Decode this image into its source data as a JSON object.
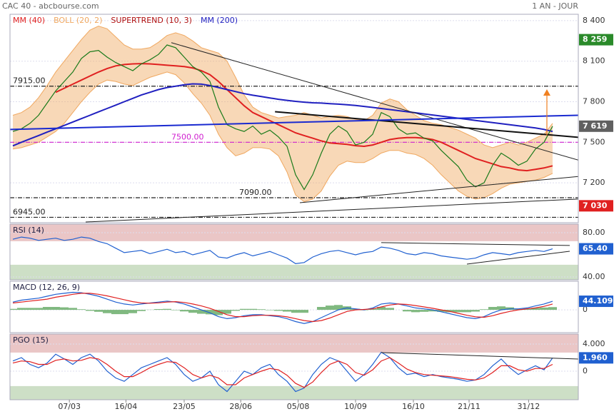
{
  "header": {
    "title": "CAC 40 - abcbourse.com",
    "period": "1 AN - JOUR"
  },
  "chart_data": [
    {
      "type": "line",
      "xlim": [
        -0.33,
        66
      ],
      "ylim": [
        6905,
        8447
      ],
      "yticks": [
        {
          "value": 8400,
          "label": "8 400"
        },
        {
          "value": 8100,
          "label": "8 100"
        },
        {
          "value": 7800,
          "label": "7 800"
        },
        {
          "value": 7500,
          "label": "7 500"
        },
        {
          "value": 7200,
          "label": "7 200"
        }
      ],
      "legend_extra": [
        {
          "name": "SUPERTREND (10, 3)",
          "color": "#b01010"
        }
      ],
      "bands": {
        "name": "BOLL (20, 2)",
        "color": "#f0a860",
        "upper": [
          7700,
          7720,
          7760,
          7830,
          7920,
          8020,
          8100,
          8180,
          8260,
          8330,
          8360,
          8340,
          8280,
          8220,
          8190,
          8190,
          8200,
          8240,
          8290,
          8310,
          8290,
          8250,
          8200,
          8180,
          8160,
          8100,
          7980,
          7850,
          7760,
          7720,
          7700,
          7680,
          7690,
          7700,
          7720,
          7700,
          7680,
          7690,
          7700,
          7690,
          7670,
          7660,
          7700,
          7790,
          7820,
          7800,
          7740,
          7700,
          7660,
          7640,
          7630,
          7610,
          7590,
          7560,
          7530,
          7480,
          7460,
          7480,
          7500,
          7480,
          7500,
          7530,
          7560,
          7640
        ],
        "lower": [
          7450,
          7460,
          7480,
          7500,
          7540,
          7580,
          7640,
          7720,
          7800,
          7870,
          7930,
          7960,
          7950,
          7930,
          7920,
          7950,
          7980,
          8000,
          8020,
          8000,
          7940,
          7860,
          7790,
          7700,
          7560,
          7460,
          7400,
          7420,
          7460,
          7460,
          7450,
          7400,
          7280,
          7110,
          7060,
          7080,
          7140,
          7250,
          7330,
          7360,
          7350,
          7350,
          7380,
          7420,
          7440,
          7440,
          7420,
          7410,
          7380,
          7330,
          7260,
          7200,
          7140,
          7100,
          7080,
          7090,
          7120,
          7160,
          7190,
          7200,
          7210,
          7220,
          7240,
          7270
        ]
      },
      "series": [
        {
          "name": "MM (40)",
          "color": "#e02020",
          "values": [
            null,
            null,
            null,
            null,
            null,
            7870,
            7900,
            7930,
            7960,
            7990,
            8020,
            8045,
            8065,
            8075,
            8080,
            8082,
            8080,
            8075,
            8070,
            8065,
            8060,
            8050,
            8030,
            8000,
            7950,
            7890,
            7830,
            7770,
            7720,
            7690,
            7660,
            7630,
            7600,
            7570,
            7550,
            7530,
            7510,
            7495,
            7490,
            7485,
            7475,
            7470,
            7480,
            7500,
            7520,
            7530,
            7535,
            7535,
            7530,
            7520,
            7500,
            7470,
            7440,
            7410,
            7380,
            7360,
            7340,
            7320,
            7310,
            7295,
            7290,
            7300,
            7310,
            7326
          ]
        },
        {
          "name": "MM (200)",
          "color": "#2020c0",
          "values": [
            7474,
            7500,
            7525,
            7550,
            7575,
            7600,
            7625,
            7650,
            7675,
            7700,
            7725,
            7750,
            7775,
            7800,
            7825,
            7850,
            7870,
            7890,
            7905,
            7915,
            7925,
            7932,
            7930,
            7920,
            7905,
            7890,
            7875,
            7860,
            7848,
            7838,
            7828,
            7818,
            7810,
            7803,
            7797,
            7792,
            7790,
            7786,
            7782,
            7778,
            7772,
            7765,
            7758,
            7750,
            7742,
            7734,
            7726,
            7718,
            7710,
            7702,
            7694,
            7686,
            7678,
            7670,
            7662,
            7654,
            7646,
            7638,
            7630,
            7622,
            7614,
            7606,
            7595,
            7580
          ]
        },
        {
          "color": "#1a7a1a",
          "values": [
            7580,
            7600,
            7640,
            7700,
            7790,
            7880,
            7950,
            8020,
            8120,
            8170,
            8180,
            8130,
            8090,
            8060,
            8030,
            8080,
            8110,
            8150,
            8220,
            8200,
            8130,
            8060,
            8020,
            7950,
            7760,
            7630,
            7600,
            7580,
            7620,
            7560,
            7590,
            7540,
            7470,
            7260,
            7150,
            7260,
            7420,
            7560,
            7620,
            7580,
            7480,
            7500,
            7560,
            7720,
            7690,
            7600,
            7560,
            7570,
            7530,
            7510,
            7440,
            7380,
            7320,
            7220,
            7170,
            7200,
            7330,
            7420,
            7380,
            7330,
            7360,
            7450,
            7500,
            7619
          ]
        }
      ],
      "trendlines": [
        {
          "x": [
            18.5,
            66
          ],
          "y": [
            8237,
            7368
          ],
          "color": "#222"
        },
        {
          "x": [
            30.6,
            66
          ],
          "y": [
            7726,
            7537
          ],
          "color": "#111",
          "width": 2
        },
        {
          "x": [
            8.5,
            66
          ],
          "y": [
            6910,
            7080
          ],
          "color": "#222"
        },
        {
          "x": [
            33.5,
            66
          ],
          "y": [
            7053,
            7247
          ],
          "color": "#222"
        },
        {
          "x": [
            -0.33,
            66
          ],
          "y": [
            7595,
            7700
          ],
          "color": "#1a2ad0",
          "width": 2
        }
      ],
      "levels": [
        {
          "value": 7915,
          "label": "7915.00",
          "color": "#222"
        },
        {
          "value": 7500,
          "label": "7500.00",
          "color": "#d020d0"
        },
        {
          "value": 7090,
          "label": "7090.00",
          "color": "#222"
        },
        {
          "value": 6945,
          "label": "6945.00",
          "color": "#222"
        }
      ],
      "badges": [
        {
          "value": 8259,
          "label": "8 259",
          "color": "#2a8a2a"
        },
        {
          "value": 7619,
          "label": "7 619",
          "color": "#606060"
        },
        {
          "value": 7030,
          "label": "7 030",
          "color": "#e02020"
        }
      ]
    },
    {
      "type": "line",
      "title": "RSI (14)",
      "xlim": [
        -0.33,
        66
      ],
      "ylim": [
        37.4,
        87.7
      ],
      "yticks": [
        {
          "value": 80,
          "label": "80.00"
        },
        {
          "value": 40,
          "label": "40.00"
        }
      ],
      "zones": [
        {
          "range": [
            72.3,
            87.7
          ],
          "color": "#e8c0c0"
        },
        {
          "range": [
            37.4,
            51
          ],
          "color": "#c8dcc0"
        }
      ],
      "series": [
        {
          "color": "#2060d0",
          "values": [
            74,
            76,
            75,
            73,
            74,
            75,
            73,
            74,
            76,
            75,
            72,
            70,
            66,
            62,
            63,
            64,
            61,
            63,
            65,
            62,
            63,
            60,
            62,
            64,
            58,
            57,
            60,
            62,
            59,
            61,
            63,
            60,
            57,
            52,
            53,
            58,
            61,
            63,
            64,
            62,
            60,
            62,
            63,
            67,
            66,
            64,
            61,
            60,
            62,
            61,
            59,
            58,
            57,
            56,
            57,
            60,
            62,
            61,
            60,
            62,
            63,
            64,
            63,
            65.4
          ]
        }
      ],
      "trendlines": [
        {
          "x": [
            43,
            65
          ],
          "y": [
            71,
            68.4
          ],
          "color": "#222"
        },
        {
          "x": [
            53,
            65
          ],
          "y": [
            51.6,
            63.2
          ],
          "color": "#222"
        }
      ],
      "badges": [
        {
          "value": 65.4,
          "label": "65.40",
          "color": "#2060d0"
        }
      ]
    },
    {
      "type": "line",
      "title": "MACD (12, 26, 9)",
      "xlim": [
        -0.33,
        66
      ],
      "ylim": [
        -117,
        147
      ],
      "yticks": [
        0
      ],
      "histogram": {
        "color": "#60a860",
        "values": [
          5,
          10,
          10,
          10,
          15,
          15,
          13,
          10,
          3,
          -5,
          -10,
          -17,
          -22,
          -22,
          -17,
          -6,
          1,
          4,
          5,
          -2,
          -8,
          -15,
          -20,
          -23,
          -27,
          -20,
          -5,
          5,
          5,
          3,
          -2,
          -5,
          -9,
          -15,
          -15,
          0,
          15,
          22,
          25,
          18,
          5,
          -2,
          5,
          15,
          10,
          0,
          -8,
          -12,
          -10,
          -8,
          -10,
          -12,
          -12,
          -12,
          -9,
          3,
          15,
          18,
          13,
          5,
          5,
          10,
          12,
          14.1
        ]
      },
      "series": [
        {
          "color": "#2060d0",
          "values": [
            40,
            50,
            55,
            60,
            70,
            80,
            85,
            90,
            88,
            80,
            70,
            55,
            40,
            30,
            25,
            30,
            35,
            40,
            45,
            40,
            30,
            15,
            0,
            -15,
            -35,
            -45,
            -40,
            -30,
            -25,
            -25,
            -30,
            -35,
            -45,
            -60,
            -70,
            -60,
            -40,
            -20,
            0,
            10,
            5,
            0,
            10,
            30,
            35,
            30,
            20,
            10,
            5,
            0,
            -10,
            -20,
            -30,
            -40,
            -45,
            -35,
            -15,
            0,
            5,
            5,
            10,
            20,
            30,
            44.1
          ]
        },
        {
          "color": "#e02020",
          "values": [
            35,
            40,
            45,
            50,
            55,
            65,
            72,
            80,
            85,
            85,
            80,
            72,
            62,
            52,
            42,
            36,
            34,
            36,
            40,
            42,
            38,
            30,
            20,
            8,
            -8,
            -25,
            -35,
            -35,
            -30,
            -28,
            -28,
            -30,
            -36,
            -45,
            -55,
            -60,
            -55,
            -42,
            -25,
            -8,
            0,
            2,
            5,
            15,
            25,
            30,
            28,
            22,
            15,
            8,
            0,
            -8,
            -18,
            -28,
            -36,
            -38,
            -30,
            -18,
            -8,
            0,
            5,
            10,
            18,
            30
          ]
        }
      ],
      "badges": [
        {
          "value": 44.109,
          "label": "44.109",
          "color": "#2060d0"
        }
      ]
    },
    {
      "type": "line",
      "title": "PGO (15)",
      "xlim": [
        -0.33,
        66
      ],
      "ylim": [
        -4.21,
        5.47
      ],
      "yticks": [
        {
          "value": 4,
          "label": "4.000"
        },
        0
      ],
      "zones": [
        {
          "range": [
            2.74,
            5.47
          ],
          "color": "#e8c0c0"
        },
        {
          "range": [
            -4.21,
            -2.2
          ],
          "color": "#c8dcc0"
        }
      ],
      "xticks": [
        {
          "value": 6.6,
          "label": "07/03"
        },
        {
          "value": 13.2,
          "label": "16/04"
        },
        {
          "value": 20,
          "label": "23/05"
        },
        {
          "value": 26.6,
          "label": "28/06"
        },
        {
          "value": 33.3,
          "label": "05/08"
        },
        {
          "value": 40,
          "label": "10/09"
        },
        {
          "value": 46.75,
          "label": "16/10"
        },
        {
          "value": 53.25,
          "label": "21/11"
        },
        {
          "value": 60.2,
          "label": "31/12"
        }
      ],
      "series": [
        {
          "color": "#2060d0",
          "values": [
            1.5,
            2,
            1,
            0.5,
            1.2,
            2.5,
            1.8,
            1,
            2,
            2.5,
            1.5,
            0,
            -1,
            -1.5,
            -0.5,
            0.5,
            1,
            1.5,
            2,
            1,
            -0.5,
            -1.5,
            -1,
            0,
            -2,
            -3,
            -1.5,
            0,
            -0.5,
            0.5,
            1,
            -0.5,
            -1.5,
            -3,
            -2.5,
            -0.5,
            1,
            2,
            1.5,
            0,
            -1.5,
            -0.5,
            1,
            2.8,
            2,
            0.5,
            -0.5,
            -0.3,
            -0.8,
            -0.5,
            -0.8,
            -1,
            -1.2,
            -1.5,
            -1.3,
            -0.5,
            0.8,
            1.8,
            0.5,
            -0.5,
            0.2,
            0.8,
            0.2,
            1.96
          ]
        },
        {
          "color": "#e02020",
          "values": [
            1.2,
            1.5,
            1.4,
            1,
            1,
            1.6,
            1.8,
            1.5,
            1.6,
            2,
            1.8,
            1,
            0,
            -0.8,
            -0.8,
            -0.2,
            0.5,
            1,
            1.4,
            1.3,
            0.5,
            -0.5,
            -1,
            -0.6,
            -1,
            -2,
            -2,
            -1,
            -0.5,
            0,
            0.4,
            0.2,
            -0.6,
            -1.8,
            -2.4,
            -1.6,
            -0.2,
            1,
            1.5,
            1,
            -0.2,
            -0.6,
            0.2,
            1.5,
            2,
            1.2,
            0.3,
            -0.2,
            -0.5,
            -0.6,
            -0.7,
            -0.8,
            -1,
            -1.2,
            -1.3,
            -1,
            -0.2,
            0.8,
            0.8,
            0.2,
            0,
            0.4,
            0.4,
            1
          ]
        }
      ],
      "trendlines": [
        {
          "x": [
            43,
            66
          ],
          "y": [
            2.74,
            1.79
          ],
          "color": "#222"
        }
      ],
      "badges": [
        {
          "value": 1.96,
          "label": "1.960",
          "color": "#2060d0"
        }
      ]
    }
  ]
}
